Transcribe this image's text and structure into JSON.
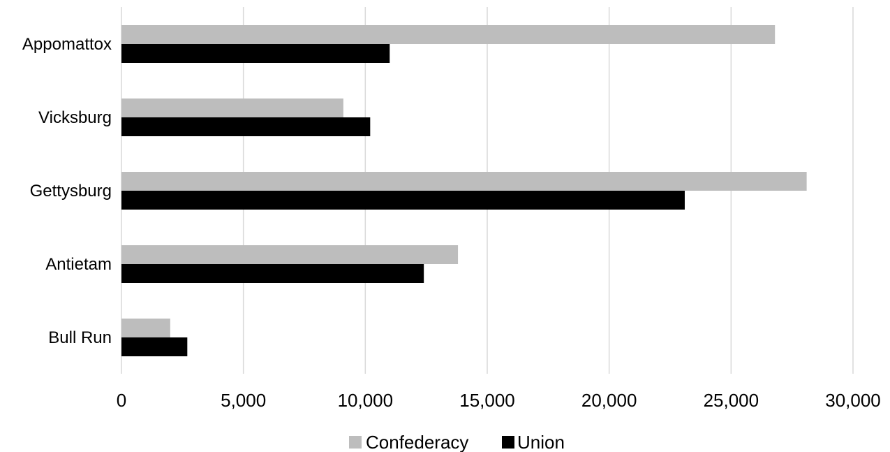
{
  "chart_data": {
    "type": "bar",
    "orientation": "horizontal",
    "categories": [
      "Appomattox",
      "Vicksburg",
      "Gettysburg",
      "Antietam",
      "Bull Run"
    ],
    "series": [
      {
        "name": "Confederacy",
        "color": "#bdbdbd",
        "values": [
          26800,
          9100,
          28100,
          13800,
          2000
        ]
      },
      {
        "name": "Union",
        "color": "#000000",
        "values": [
          11000,
          10200,
          23100,
          12400,
          2700
        ]
      }
    ],
    "xlim": [
      0,
      30000
    ],
    "xticks": [
      0,
      5000,
      10000,
      15000,
      20000,
      25000,
      30000
    ],
    "xtick_labels": [
      "0",
      "5,000",
      "10,000",
      "15,000",
      "20,000",
      "25,000",
      "30,000"
    ],
    "grid": "vertical",
    "legend": "bottom-center",
    "title": "",
    "xlabel": "",
    "ylabel": ""
  }
}
